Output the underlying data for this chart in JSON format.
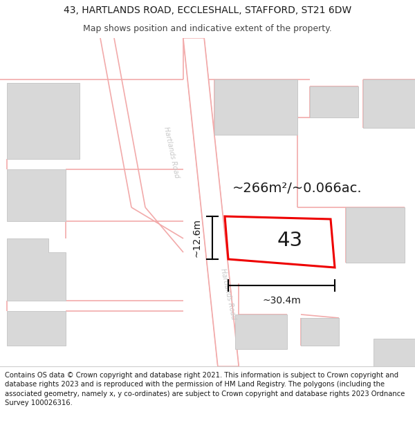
{
  "title_line1": "43, HARTLANDS ROAD, ECCLESHALL, STAFFORD, ST21 6DW",
  "title_line2": "Map shows position and indicative extent of the property.",
  "footer_text": "Contains OS data © Crown copyright and database right 2021. This information is subject to Crown copyright and database rights 2023 and is reproduced with the permission of HM Land Registry. The polygons (including the associated geometry, namely x, y co-ordinates) are subject to Crown copyright and database rights 2023 Ordnance Survey 100026316.",
  "map_bg": "#f0f0f0",
  "road_pink": "#f2aaaa",
  "road_white": "#ffffff",
  "building_fill": "#d8d8d8",
  "building_edge": "#c8c8c8",
  "prop_fill": "#ffffff",
  "prop_edge": "#ee0000",
  "road_label_color": "#c8c8c8",
  "area_text": "~266m²/~0.066ac.",
  "number_text": "43",
  "width_text": "~30.4m",
  "height_text": "~12.6m",
  "title_fs": 10,
  "subtitle_fs": 9,
  "footer_fs": 7.2,
  "area_fs": 14,
  "number_fs": 21,
  "dim_fs": 10,
  "road_label_fs": 7
}
